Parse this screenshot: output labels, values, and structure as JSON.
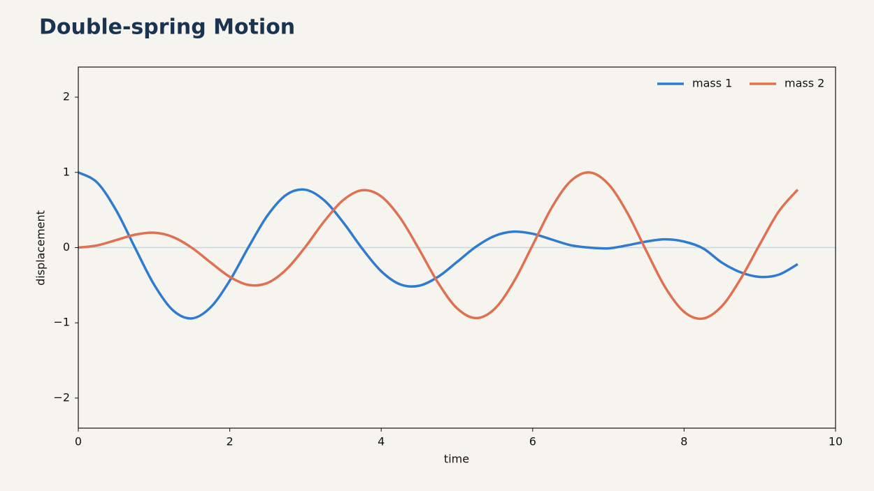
{
  "chart_data": {
    "type": "line",
    "title": "Double-spring Motion",
    "x_label": "time",
    "y_label": "displacement",
    "x": [
      0,
      0.25,
      0.5,
      0.75,
      1,
      1.25,
      1.5,
      1.75,
      2,
      2.25,
      2.5,
      2.75,
      3,
      3.25,
      3.5,
      3.75,
      4,
      4.25,
      4.5,
      4.75,
      5,
      5.25,
      5.5,
      5.75,
      6,
      6.25,
      6.5,
      6.75,
      7,
      7.25,
      7.5,
      7.75,
      8,
      8.25,
      8.5,
      8.75,
      9,
      9.25,
      9.5
    ],
    "series": [
      {
        "name": "mass 1",
        "color": "#2f7bd0",
        "values": [
          1,
          0.864,
          0.495,
          -0.004,
          -0.491,
          -0.834,
          -0.941,
          -0.791,
          -0.439,
          0.01,
          0.429,
          0.704,
          0.769,
          0.626,
          0.333,
          -0.014,
          -0.314,
          -0.489,
          -0.507,
          -0.389,
          -0.192,
          0.011,
          0.156,
          0.212,
          0.184,
          0.108,
          0.032,
          0,
          -0.01,
          0.03,
          0.08,
          0.11,
          0.08,
          -0.01,
          -0.2,
          -0.33,
          -0.39,
          -0.36,
          -0.22
        ]
      },
      {
        "name": "mass 2",
        "color": "#e07050",
        "values": [
          0,
          0.029,
          0.1,
          0.172,
          0.198,
          0.141,
          -0.003,
          -0.2,
          -0.389,
          -0.497,
          -0.469,
          -0.288,
          0.011,
          0.352,
          0.633,
          0.762,
          0.681,
          0.396,
          -0.022,
          -0.466,
          -0.805,
          -0.937,
          -0.812,
          -0.455,
          0.033,
          0.528,
          0.882,
          0.999,
          0.844,
          0.462,
          -0.041,
          -0.527,
          -0.854,
          -0.943,
          -0.777,
          -0.41,
          0.044,
          0.48,
          0.77
        ]
      }
    ],
    "xlim": [
      0,
      10
    ],
    "xticks": [
      0,
      2,
      4,
      6,
      8,
      10
    ],
    "ylim": [
      -2.4,
      2.4
    ],
    "yticks": [
      {
        "value": -2,
        "label": "−2"
      },
      {
        "value": -1,
        "label": "−1"
      },
      0,
      1,
      2
    ],
    "legend": "upper right"
  }
}
